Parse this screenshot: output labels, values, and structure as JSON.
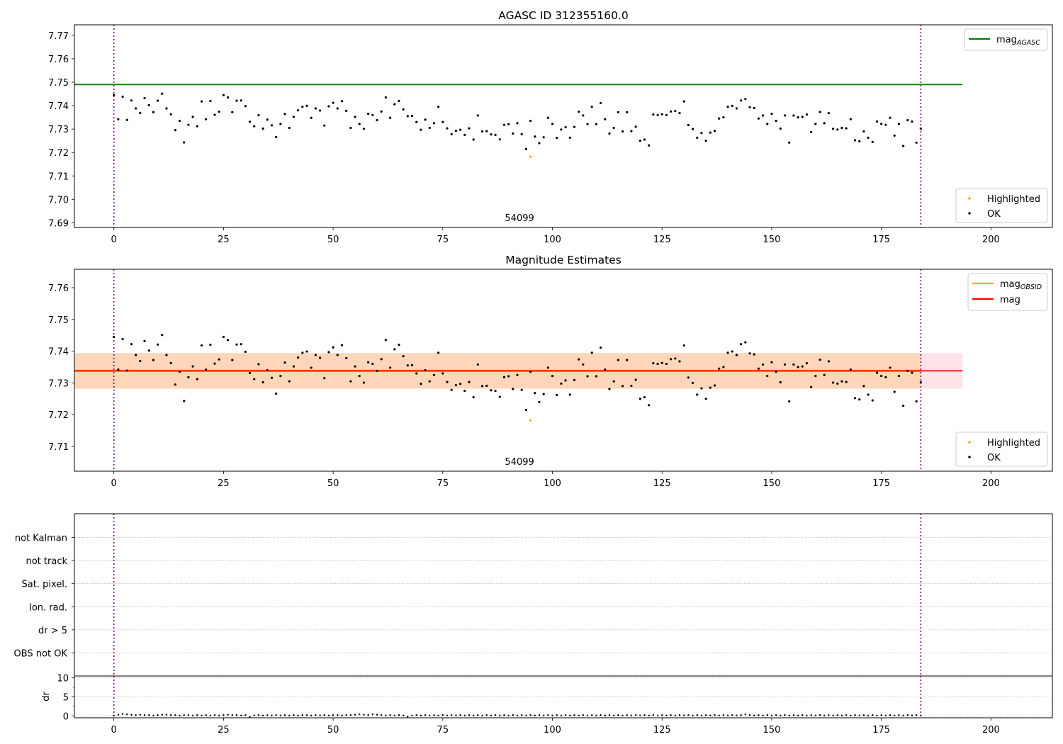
{
  "chart_data": [
    {
      "type": "scatter",
      "title": "AGASC ID 312355160.0",
      "xlim": [
        -9,
        214
      ],
      "ylim": [
        7.688,
        7.7745
      ],
      "xticks": [
        0,
        25,
        50,
        75,
        100,
        125,
        150,
        175,
        200
      ],
      "yticks": [
        7.69,
        7.7,
        7.71,
        7.72,
        7.73,
        7.74,
        7.75,
        7.76,
        7.77
      ],
      "yformat": 2,
      "vlines": [
        0,
        184
      ],
      "annotations": [
        {
          "text": "54099",
          "x": 92.5
        }
      ],
      "hlines": [
        {
          "name": "mag",
          "sub": "AGASC",
          "y": 7.749,
          "x_end": 193.5,
          "color": "#008000"
        }
      ],
      "legend_upper": [
        {
          "label": "mag",
          "sub": "AGASC",
          "color": "#008000"
        }
      ],
      "legend_lower": [
        {
          "label": "Highlighted",
          "color": "#FFA500"
        },
        {
          "label": "OK",
          "color": "#000000"
        }
      ],
      "series": [
        {
          "name": "OK",
          "color": "#000000",
          "source": "mag_points"
        },
        {
          "name": "Highlighted",
          "color": "#FFA500",
          "source": "highlighted"
        }
      ]
    },
    {
      "type": "scatter",
      "title": "Magnitude Estimates",
      "xlim": [
        -9,
        214
      ],
      "ylim": [
        7.7022,
        7.7658
      ],
      "xticks": [
        0,
        25,
        50,
        75,
        100,
        125,
        150,
        175,
        200
      ],
      "yticks": [
        7.71,
        7.72,
        7.73,
        7.74,
        7.75,
        7.76
      ],
      "yformat": 2,
      "vlines": [
        0,
        184
      ],
      "annotations": [
        {
          "text": "54099",
          "x": 92.5
        }
      ],
      "bands": [
        {
          "y0": 7.7282,
          "y1": 7.7394,
          "x_end": 193.5,
          "color": "#FFC0CB",
          "opacity": 0.45
        },
        {
          "y0": 7.7282,
          "y1": 7.7394,
          "x_end": 184,
          "color": "#FFA500",
          "opacity": 0.2
        }
      ],
      "hlines": [
        {
          "name": "mag",
          "sub": "OBSID",
          "y": 7.7338,
          "x_end": 184,
          "color": "#FFA500"
        },
        {
          "name": "mag",
          "sub": "",
          "y": 7.7338,
          "x_end": 193.5,
          "color": "#FF0000"
        }
      ],
      "legend_upper": [
        {
          "label": "mag",
          "sub": "OBSID",
          "color": "#FFA500"
        },
        {
          "label": "mag",
          "sub": "",
          "color": "#FF0000"
        }
      ],
      "legend_lower": [
        {
          "label": "Highlighted",
          "color": "#FFA500"
        },
        {
          "label": "OK",
          "color": "#000000"
        }
      ],
      "series": [
        {
          "name": "OK",
          "color": "#000000",
          "source": "mag_points"
        },
        {
          "name": "Highlighted",
          "color": "#FFA500",
          "source": "highlighted"
        }
      ]
    },
    {
      "type": "scatter",
      "title": "",
      "ylabel": "",
      "categories": [
        "not Kalman",
        "not track",
        "Sat. pixel.",
        "Ion. rad.",
        "dr > 5",
        "OBS not OK"
      ],
      "xlim": [
        -9,
        214
      ],
      "vlines": [
        0,
        184
      ],
      "grid": "dotted",
      "series": []
    },
    {
      "type": "scatter",
      "title": "",
      "ylabel": "dr",
      "xlim": [
        -9,
        214
      ],
      "ylim": [
        -0.5,
        10.5
      ],
      "xticks": [
        0,
        25,
        50,
        75,
        100,
        125,
        150,
        175,
        200
      ],
      "yticks": [
        0,
        5,
        10
      ],
      "minor_yticks": [
        2.5,
        7.5
      ],
      "yformat": 0,
      "vlines": [
        0,
        184
      ],
      "series": [
        {
          "name": "dr",
          "color": "#000000",
          "source": "dr_points"
        }
      ]
    }
  ],
  "mag_points": [
    [
      0,
      7.7445
    ],
    [
      1,
      7.7342
    ],
    [
      2,
      7.7438
    ],
    [
      3,
      7.7339
    ],
    [
      4,
      7.7422
    ],
    [
      5,
      7.7388
    ],
    [
      6,
      7.7369
    ],
    [
      7,
      7.7432
    ],
    [
      8,
      7.7402
    ],
    [
      9,
      7.7372
    ],
    [
      10,
      7.7421
    ],
    [
      11,
      7.7451
    ],
    [
      12,
      7.7388
    ],
    [
      13,
      7.7363
    ],
    [
      14,
      7.7295
    ],
    [
      15,
      7.7335
    ],
    [
      16,
      7.7243
    ],
    [
      17,
      7.7318
    ],
    [
      18,
      7.7352
    ],
    [
      19,
      7.7312
    ],
    [
      20,
      7.7418
    ],
    [
      21,
      7.7342
    ],
    [
      22,
      7.742
    ],
    [
      23,
      7.7361
    ],
    [
      24,
      7.7374
    ],
    [
      25,
      7.7445
    ],
    [
      26,
      7.7435
    ],
    [
      27,
      7.7372
    ],
    [
      28,
      7.7421
    ],
    [
      29,
      7.7422
    ],
    [
      30,
      7.7398
    ],
    [
      31,
      7.7331
    ],
    [
      32,
      7.7312
    ],
    [
      33,
      7.7359
    ],
    [
      34,
      7.7302
    ],
    [
      35,
      7.734
    ],
    [
      36,
      7.7316
    ],
    [
      37,
      7.7266
    ],
    [
      38,
      7.7322
    ],
    [
      39,
      7.7364
    ],
    [
      40,
      7.7305
    ],
    [
      41,
      7.7352
    ],
    [
      42,
      7.738
    ],
    [
      43,
      7.7395
    ],
    [
      44,
      7.7399
    ],
    [
      45,
      7.7348
    ],
    [
      46,
      7.7388
    ],
    [
      47,
      7.7379
    ],
    [
      48,
      7.7315
    ],
    [
      49,
      7.7397
    ],
    [
      50,
      7.7412
    ],
    [
      51,
      7.7388
    ],
    [
      52,
      7.7419
    ],
    [
      53,
      7.7378
    ],
    [
      54,
      7.7305
    ],
    [
      55,
      7.7352
    ],
    [
      56,
      7.7322
    ],
    [
      57,
      7.7301
    ],
    [
      58,
      7.7365
    ],
    [
      59,
      7.736
    ],
    [
      60,
      7.7338
    ],
    [
      61,
      7.7375
    ],
    [
      62,
      7.7435
    ],
    [
      63,
      7.7348
    ],
    [
      64,
      7.7406
    ],
    [
      65,
      7.742
    ],
    [
      66,
      7.7384
    ],
    [
      67,
      7.7355
    ],
    [
      68,
      7.7356
    ],
    [
      69,
      7.733
    ],
    [
      70,
      7.7297
    ],
    [
      71,
      7.734
    ],
    [
      72,
      7.7305
    ],
    [
      73,
      7.7325
    ],
    [
      74,
      7.7395
    ],
    [
      75,
      7.733
    ],
    [
      76,
      7.7303
    ],
    [
      77,
      7.7278
    ],
    [
      78,
      7.7293
    ],
    [
      79,
      7.7297
    ],
    [
      80,
      7.7275
    ],
    [
      81,
      7.7303
    ],
    [
      82,
      7.7255
    ],
    [
      83,
      7.7358
    ],
    [
      84,
      7.729
    ],
    [
      85,
      7.7291
    ],
    [
      86,
      7.7277
    ],
    [
      87,
      7.7275
    ],
    [
      88,
      7.7256
    ],
    [
      89,
      7.7318
    ],
    [
      90,
      7.7321
    ],
    [
      91,
      7.7281
    ],
    [
      92,
      7.7325
    ],
    [
      93,
      7.7278
    ],
    [
      94,
      7.7215
    ],
    [
      95,
      7.7335
    ],
    [
      96,
      7.7268
    ],
    [
      97,
      7.724
    ],
    [
      98,
      7.7265
    ],
    [
      99,
      7.7348
    ],
    [
      100,
      7.7322
    ],
    [
      101,
      7.7262
    ],
    [
      102,
      7.7298
    ],
    [
      103,
      7.7308
    ],
    [
      104,
      7.7263
    ],
    [
      105,
      7.7309
    ],
    [
      106,
      7.7374
    ],
    [
      107,
      7.7358
    ],
    [
      108,
      7.7321
    ],
    [
      109,
      7.7395
    ],
    [
      110,
      7.7321
    ],
    [
      111,
      7.7411
    ],
    [
      112,
      7.7342
    ],
    [
      113,
      7.7281
    ],
    [
      114,
      7.7305
    ],
    [
      115,
      7.7372
    ],
    [
      116,
      7.729
    ],
    [
      117,
      7.7372
    ],
    [
      118,
      7.7291
    ],
    [
      119,
      7.731
    ],
    [
      120,
      7.725
    ],
    [
      121,
      7.7255
    ],
    [
      122,
      7.723
    ],
    [
      123,
      7.7362
    ],
    [
      124,
      7.736
    ],
    [
      125,
      7.7363
    ],
    [
      126,
      7.736
    ],
    [
      127,
      7.7375
    ],
    [
      128,
      7.7377
    ],
    [
      129,
      7.7368
    ],
    [
      130,
      7.7418
    ],
    [
      131,
      7.7317
    ],
    [
      132,
      7.73
    ],
    [
      133,
      7.7263
    ],
    [
      134,
      7.7283
    ],
    [
      135,
      7.725
    ],
    [
      136,
      7.7285
    ],
    [
      137,
      7.7292
    ],
    [
      138,
      7.7345
    ],
    [
      139,
      7.735
    ],
    [
      140,
      7.7395
    ],
    [
      141,
      7.7399
    ],
    [
      142,
      7.7388
    ],
    [
      143,
      7.7422
    ],
    [
      144,
      7.7428
    ],
    [
      145,
      7.7393
    ],
    [
      146,
      7.739
    ],
    [
      147,
      7.7345
    ],
    [
      148,
      7.7358
    ],
    [
      149,
      7.7322
    ],
    [
      150,
      7.7365
    ],
    [
      151,
      7.7335
    ],
    [
      152,
      7.7302
    ],
    [
      153,
      7.7358
    ],
    [
      154,
      7.7242
    ],
    [
      155,
      7.7358
    ],
    [
      156,
      7.735
    ],
    [
      157,
      7.7352
    ],
    [
      158,
      7.7362
    ],
    [
      159,
      7.7287
    ],
    [
      160,
      7.7322
    ],
    [
      161,
      7.7373
    ],
    [
      162,
      7.7325
    ],
    [
      163,
      7.7368
    ],
    [
      164,
      7.7301
    ],
    [
      165,
      7.7298
    ],
    [
      166,
      7.7305
    ],
    [
      167,
      7.7303
    ],
    [
      168,
      7.7342
    ],
    [
      169,
      7.7252
    ],
    [
      170,
      7.7248
    ],
    [
      171,
      7.729
    ],
    [
      172,
      7.7263
    ],
    [
      173,
      7.7245
    ],
    [
      174,
      7.7332
    ],
    [
      175,
      7.7322
    ],
    [
      176,
      7.7318
    ],
    [
      177,
      7.7348
    ],
    [
      178,
      7.7272
    ],
    [
      179,
      7.7322
    ],
    [
      180,
      7.7228
    ],
    [
      181,
      7.7338
    ],
    [
      182,
      7.7332
    ],
    [
      183,
      7.7242
    ],
    [
      184,
      7.7302
    ]
  ],
  "highlighted": [
    [
      95,
      7.7182
    ]
  ],
  "dr_points": [
    [
      0,
      0.1
    ],
    [
      1,
      0.3
    ],
    [
      2,
      0.5
    ],
    [
      3,
      0.4
    ],
    [
      4,
      0.3
    ],
    [
      5,
      0.2
    ],
    [
      6,
      0.3
    ],
    [
      7,
      0.2
    ],
    [
      8,
      0.2
    ],
    [
      9,
      0.1
    ],
    [
      10,
      0.2
    ],
    [
      11,
      0.3
    ],
    [
      12,
      0.3
    ],
    [
      13,
      0.2
    ],
    [
      14,
      0.2
    ],
    [
      15,
      0.1
    ],
    [
      16,
      0.2
    ],
    [
      17,
      0.2
    ],
    [
      18,
      0.1
    ],
    [
      19,
      0.2
    ],
    [
      20,
      0.1
    ],
    [
      21,
      0.2
    ],
    [
      22,
      0.1
    ],
    [
      23,
      0.2
    ],
    [
      24,
      0.1
    ],
    [
      25,
      0.2
    ],
    [
      26,
      0.3
    ],
    [
      27,
      0.2
    ],
    [
      28,
      0.2
    ],
    [
      29,
      0.1
    ],
    [
      30,
      0.2
    ],
    [
      31,
      -0.3
    ],
    [
      32,
      0.1
    ],
    [
      33,
      0.2
    ],
    [
      34,
      0.1
    ],
    [
      35,
      0.2
    ],
    [
      36,
      0.1
    ],
    [
      37,
      0.2
    ],
    [
      38,
      0.1
    ],
    [
      39,
      0.2
    ],
    [
      40,
      0.1
    ],
    [
      41,
      0.2
    ],
    [
      42,
      0.1
    ],
    [
      43,
      0.2
    ],
    [
      44,
      0.2
    ],
    [
      45,
      0.1
    ],
    [
      46,
      0.2
    ],
    [
      47,
      0.1
    ],
    [
      48,
      0.2
    ],
    [
      49,
      0.1
    ],
    [
      50,
      0.2
    ],
    [
      51,
      0.2
    ],
    [
      52,
      0.1
    ],
    [
      53,
      0.2
    ],
    [
      54,
      0.2
    ],
    [
      55,
      0.3
    ],
    [
      56,
      0.4
    ],
    [
      57,
      0.3
    ],
    [
      58,
      0.2
    ],
    [
      59,
      0.4
    ],
    [
      60,
      0.3
    ],
    [
      61,
      0.2
    ],
    [
      62,
      0.1
    ],
    [
      63,
      0.2
    ],
    [
      64,
      0.1
    ],
    [
      65,
      0.2
    ],
    [
      66,
      0.1
    ],
    [
      67,
      -0.2
    ],
    [
      68,
      0.1
    ],
    [
      69,
      0.2
    ],
    [
      70,
      0.1
    ],
    [
      71,
      0.2
    ],
    [
      72,
      0.1
    ],
    [
      73,
      0.2
    ],
    [
      74,
      0.1
    ],
    [
      75,
      0.2
    ],
    [
      76,
      0.1
    ],
    [
      77,
      0.2
    ],
    [
      78,
      0.1
    ],
    [
      79,
      0.2
    ],
    [
      80,
      0.1
    ],
    [
      81,
      0.2
    ],
    [
      82,
      0.1
    ],
    [
      83,
      0.2
    ],
    [
      84,
      0.1
    ],
    [
      85,
      0.2
    ],
    [
      86,
      0.1
    ],
    [
      87,
      0.2
    ],
    [
      88,
      0.1
    ],
    [
      89,
      0.2
    ],
    [
      90,
      0.1
    ],
    [
      91,
      0.2
    ],
    [
      92,
      0.1
    ],
    [
      93,
      0.2
    ],
    [
      94,
      0.1
    ],
    [
      95,
      0.2
    ],
    [
      96,
      0.1
    ],
    [
      97,
      0.2
    ],
    [
      98,
      0.1
    ],
    [
      99,
      0.2
    ],
    [
      100,
      0.1
    ],
    [
      101,
      0.2
    ],
    [
      102,
      0.1
    ],
    [
      103,
      0.2
    ],
    [
      104,
      0.1
    ],
    [
      105,
      0.2
    ],
    [
      106,
      0.1
    ],
    [
      107,
      0.2
    ],
    [
      108,
      0.1
    ],
    [
      109,
      0.2
    ],
    [
      110,
      0.1
    ],
    [
      111,
      0.2
    ],
    [
      112,
      0.1
    ],
    [
      113,
      0.2
    ],
    [
      114,
      0.1
    ],
    [
      115,
      0.2
    ],
    [
      116,
      0.1
    ],
    [
      117,
      0.2
    ],
    [
      118,
      0.1
    ],
    [
      119,
      0.2
    ],
    [
      120,
      0.1
    ],
    [
      121,
      0.2
    ],
    [
      122,
      0.1
    ],
    [
      123,
      0.2
    ],
    [
      124,
      0.1
    ],
    [
      125,
      0.2
    ],
    [
      126,
      0.1
    ],
    [
      127,
      0.2
    ],
    [
      128,
      0.1
    ],
    [
      129,
      0.2
    ],
    [
      130,
      0.1
    ],
    [
      131,
      0.2
    ],
    [
      132,
      0.1
    ],
    [
      133,
      0.2
    ],
    [
      134,
      0.1
    ],
    [
      135,
      0.2
    ],
    [
      136,
      0.1
    ],
    [
      137,
      0.2
    ],
    [
      138,
      0.1
    ],
    [
      139,
      0.2
    ],
    [
      140,
      0.1
    ],
    [
      141,
      0.2
    ],
    [
      142,
      0.1
    ],
    [
      143,
      0.2
    ],
    [
      144,
      0.4
    ],
    [
      145,
      0.2
    ],
    [
      146,
      0.1
    ],
    [
      147,
      0.2
    ],
    [
      148,
      0.1
    ],
    [
      149,
      0.2
    ],
    [
      150,
      0.1
    ],
    [
      151,
      0.2
    ],
    [
      152,
      0.1
    ],
    [
      153,
      0.2
    ],
    [
      154,
      0.1
    ],
    [
      155,
      0.2
    ],
    [
      156,
      0.1
    ],
    [
      157,
      0.2
    ],
    [
      158,
      0.1
    ],
    [
      159,
      0.2
    ],
    [
      160,
      0.1
    ],
    [
      161,
      0.2
    ],
    [
      162,
      0.1
    ],
    [
      163,
      0.2
    ],
    [
      164,
      0.1
    ],
    [
      165,
      0.2
    ],
    [
      166,
      0.1
    ],
    [
      167,
      0.2
    ],
    [
      168,
      0.1
    ],
    [
      169,
      0.2
    ],
    [
      170,
      0.1
    ],
    [
      171,
      0.2
    ],
    [
      172,
      0.1
    ],
    [
      173,
      0.2
    ],
    [
      174,
      0.1
    ],
    [
      175,
      0.2
    ],
    [
      176,
      0.1
    ],
    [
      177,
      0.2
    ],
    [
      178,
      0.1
    ],
    [
      179,
      0.2
    ],
    [
      180,
      0.1
    ],
    [
      181,
      0.2
    ],
    [
      182,
      0.1
    ],
    [
      183,
      0.2
    ],
    [
      184,
      0.1
    ]
  ]
}
